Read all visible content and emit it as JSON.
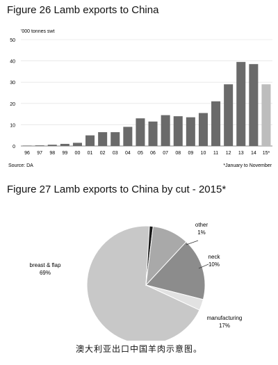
{
  "chart_data": [
    {
      "type": "bar",
      "title": "Figure 26 Lamb exports to China",
      "ylabel": "'000 tonnes swt",
      "ylim": [
        0,
        50
      ],
      "yticks": [
        0,
        10,
        20,
        30,
        40,
        50
      ],
      "categories": [
        "96",
        "97",
        "98",
        "99",
        "00",
        "01",
        "02",
        "03",
        "04",
        "05",
        "06",
        "07",
        "08",
        "09",
        "10",
        "11",
        "12",
        "13",
        "14",
        "15*"
      ],
      "values": [
        0.2,
        0.3,
        0.6,
        1.0,
        1.5,
        5.0,
        6.5,
        6.5,
        9.0,
        13.0,
        11.5,
        14.5,
        14.0,
        13.5,
        15.5,
        21.0,
        29.0,
        39.5,
        38.5,
        29.0
      ],
      "colors": {
        "bar": "#6a6a6a",
        "partial_year_bar": "#bdbdbd"
      },
      "source": "Source: DA",
      "footnote": "*January to November"
    },
    {
      "type": "pie",
      "title": "Figure 27 Lamb exports to China by cut - 2015*",
      "slices": [
        {
          "label": "breast & flap",
          "value": 69,
          "value_label": "69%",
          "color": "#c8c8c8"
        },
        {
          "label": "other",
          "value": 1,
          "value_label": "1%",
          "color": "#1a1a1a"
        },
        {
          "label": "neck",
          "value": 10,
          "value_label": "10%",
          "color": "#a9a9a9"
        },
        {
          "label": "manufacturing",
          "value": 17,
          "value_label": "17%",
          "color": "#8c8c8c"
        },
        {
          "label": "",
          "value": 3,
          "value_label": "",
          "color": "#e2e2e2"
        }
      ]
    }
  ],
  "caption": "澳大利亚出口中国羊肉示意图。"
}
